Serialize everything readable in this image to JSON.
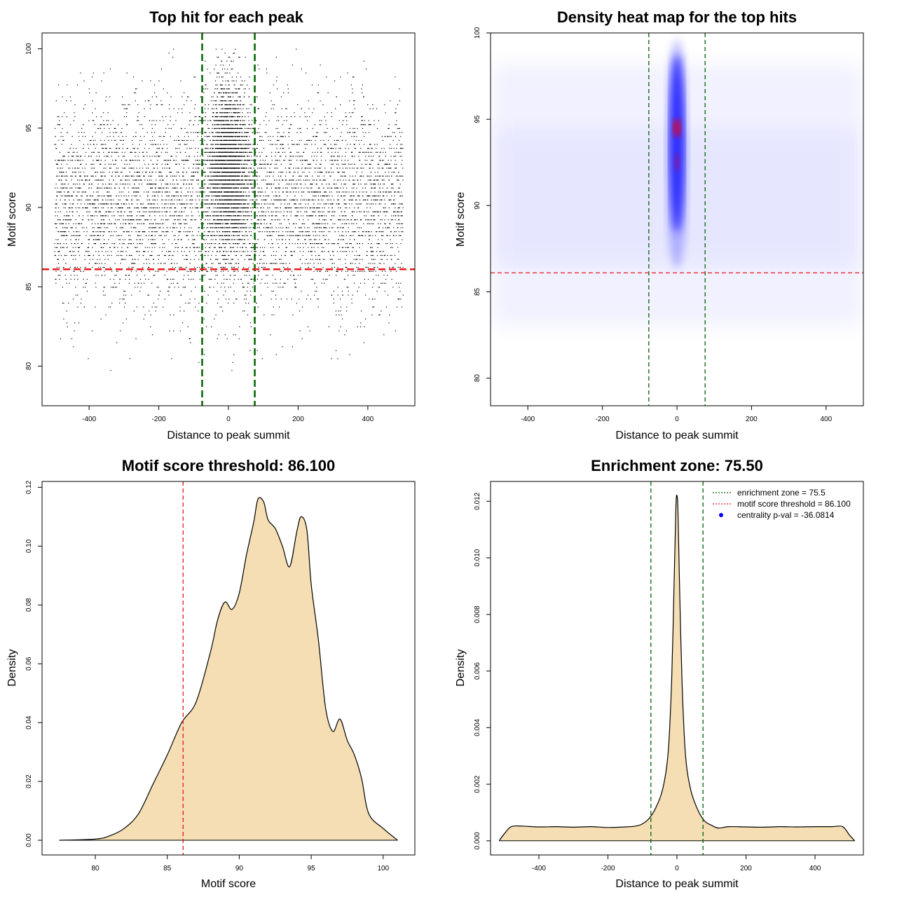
{
  "colors": {
    "points": "#000000",
    "threshold_line": "#e8191c",
    "zone_line": "#006400",
    "density_fill": "#f5deb3",
    "heat_low": "#ffffff",
    "heat_mid": "#0000ff",
    "heat_high": "#ff0000"
  },
  "chart_data": [
    {
      "id": "scatter",
      "type": "scatter",
      "title": "Top hit for each peak",
      "xlabel": "Distance to peak summit",
      "ylabel": "Motif score",
      "xlim": [
        -535,
        535
      ],
      "ylim": [
        77.5,
        101
      ],
      "xticks": [
        -400,
        -200,
        0,
        200,
        400
      ],
      "xtick_labels": [
        "-400",
        "-200",
        "0",
        "200",
        "400"
      ],
      "yticks": [
        80,
        85,
        90,
        95,
        100
      ],
      "ytick_labels": [
        "80",
        "85",
        "90",
        "95",
        "100"
      ],
      "vlines": [
        -75.5,
        75.5
      ],
      "hlines": [
        86.1
      ],
      "point_distribution": {
        "x_range": [
          -500,
          500
        ],
        "score_range": [
          78.7,
          100
        ],
        "score_peak_region": [
          86,
          98
        ],
        "central_enrichment_halfwidth": 30,
        "approx_points": 9000
      }
    },
    {
      "id": "heatmap",
      "type": "heatmap",
      "title": "Density heat map for the top hits",
      "xlabel": "Distance to peak summit",
      "ylabel": "Motif score",
      "xlim": [
        -500,
        500
      ],
      "ylim": [
        78.4,
        100
      ],
      "xticks": [
        -400,
        -200,
        0,
        200,
        400
      ],
      "xtick_labels": [
        "-400",
        "-200",
        "0",
        "200",
        "400"
      ],
      "yticks": [
        80,
        85,
        90,
        95,
        100
      ],
      "ytick_labels": [
        "80",
        "85",
        "90",
        "95",
        "100"
      ],
      "vlines": [
        -75.5,
        75.5
      ],
      "hlines": [
        86.1
      ],
      "hotspot": {
        "x": 0,
        "y_center": 94.5,
        "y_secondary": 92.5
      }
    },
    {
      "id": "score_density",
      "type": "area",
      "title": "Motif score threshold: 86.100",
      "xlabel": "Motif score",
      "ylabel": "Density",
      "xlim": [
        76.3,
        102.2
      ],
      "ylim": [
        -0.005,
        0.122
      ],
      "xticks": [
        80,
        85,
        90,
        95,
        100
      ],
      "xtick_labels": [
        "80",
        "85",
        "90",
        "95",
        "100"
      ],
      "yticks": [
        0,
        0.02,
        0.04,
        0.06,
        0.08,
        0.1,
        0.12
      ],
      "ytick_labels": [
        "0.00",
        "0.02",
        "0.04",
        "0.06",
        "0.08",
        "0.10",
        "0.12"
      ],
      "vlines": [
        86.1
      ],
      "x": [
        77.5,
        80,
        81,
        82,
        83,
        84,
        85,
        86,
        87,
        88,
        88.5,
        89,
        89.5,
        90,
        90.5,
        91,
        91.3,
        91.7,
        92,
        92.5,
        93,
        93.5,
        94,
        94.3,
        94.7,
        95,
        95.5,
        96,
        96.5,
        97,
        97.5,
        98,
        98.5,
        99,
        100,
        101
      ],
      "y": [
        0.0,
        0.0004,
        0.0015,
        0.004,
        0.009,
        0.019,
        0.029,
        0.04,
        0.047,
        0.064,
        0.075,
        0.081,
        0.0785,
        0.084,
        0.097,
        0.108,
        0.116,
        0.115,
        0.109,
        0.106,
        0.1,
        0.093,
        0.105,
        0.11,
        0.1055,
        0.087,
        0.068,
        0.045,
        0.037,
        0.0412,
        0.034,
        0.029,
        0.021,
        0.009,
        0.004,
        0.0
      ]
    },
    {
      "id": "distance_density",
      "type": "area",
      "title": "Enrichment zone: 75.50",
      "xlabel": "Distance to peak summit",
      "ylabel": "Density",
      "xlim": [
        -540,
        540
      ],
      "ylim": [
        -0.0005,
        0.0127
      ],
      "xticks": [
        -400,
        -200,
        0,
        200,
        400
      ],
      "xtick_labels": [
        "-400",
        "-200",
        "0",
        "200",
        "400"
      ],
      "yticks": [
        0,
        0.002,
        0.004,
        0.006,
        0.008,
        0.01,
        0.012
      ],
      "ytick_labels": [
        "0.000",
        "0.002",
        "0.004",
        "0.006",
        "0.008",
        "0.010",
        "0.012"
      ],
      "vlines": [
        -75.5,
        75.5
      ],
      "x": [
        -515,
        -500,
        -480,
        -450,
        -400,
        -350,
        -300,
        -250,
        -200,
        -150,
        -120,
        -100,
        -80,
        -60,
        -40,
        -25,
        -15,
        -8,
        -3,
        0,
        3,
        8,
        15,
        25,
        40,
        60,
        80,
        100,
        120,
        150,
        200,
        250,
        300,
        350,
        400,
        450,
        480,
        500,
        515
      ],
      "y": [
        0.0,
        0.00025,
        0.0005,
        0.00052,
        0.00049,
        0.0005,
        0.00048,
        0.0005,
        0.00047,
        0.00049,
        0.00052,
        0.0006,
        0.0008,
        0.0012,
        0.0019,
        0.0032,
        0.0058,
        0.0093,
        0.0118,
        0.0122,
        0.0116,
        0.0088,
        0.0055,
        0.003,
        0.0018,
        0.0011,
        0.0007,
        0.00055,
        0.00045,
        0.0005,
        0.00049,
        0.00048,
        0.0005,
        0.00049,
        0.0005,
        0.0005,
        0.0005,
        0.0002,
        0.0
      ],
      "legend": {
        "placement": "top-right",
        "items": [
          {
            "label": "enrichment zone = 75.5",
            "style": "dotted-line",
            "color": "#006400"
          },
          {
            "label": "motif score threshold = 86.100",
            "style": "dotted-line",
            "color": "#e8191c"
          },
          {
            "label": "centrality p-val = -36.0814",
            "style": "point",
            "color": "#0000ff"
          }
        ]
      }
    }
  ]
}
